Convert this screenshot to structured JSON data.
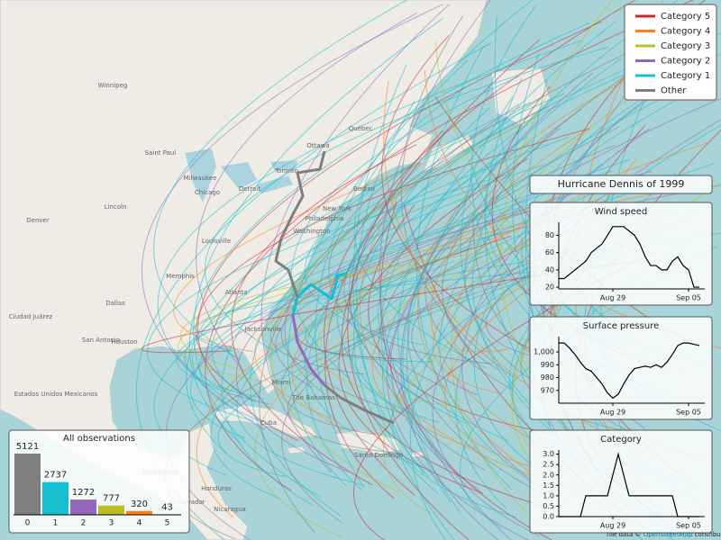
{
  "legend": {
    "items": [
      {
        "name": "Category 5",
        "color": "#d62728"
      },
      {
        "name": "Category 4",
        "color": "#ff7f0e"
      },
      {
        "name": "Category 3",
        "color": "#bcbd22"
      },
      {
        "name": "Category 2",
        "color": "#9467bd"
      },
      {
        "name": "Category 1",
        "color": "#17becf"
      },
      {
        "name": "Other",
        "color": "#7f7f7f"
      }
    ]
  },
  "map_labels": [
    "Winnipeg",
    "Ottawa",
    "Québec",
    "Toronto",
    "Boston",
    "New York",
    "Philadelphia",
    "Washington",
    "Milwaukee",
    "Chicago",
    "Detroit",
    "Saint Paul",
    "Lincoln",
    "Denver",
    "Louisville",
    "Memphis",
    "Atlanta",
    "Dallas",
    "Houston",
    "San Antonio",
    "Ciudad Juárez",
    "Estados Unidos Mexicanos",
    "Jacksonville",
    "Miami",
    "The Bahamas",
    "Cuba",
    "Guatemala",
    "Honduras",
    "El Salvador",
    "Nicaragua",
    "Santo Domingo"
  ],
  "panel": {
    "title": "Hurricane Dennis of 1999",
    "x": [
      24,
      24.5,
      25,
      25.5,
      26,
      26.5,
      27,
      27.5,
      28,
      28.5,
      29,
      29.5,
      30,
      30.5,
      31,
      31.5,
      32,
      32.5,
      33,
      33.5,
      34,
      34.5,
      35,
      35.5,
      36,
      36.5,
      37
    ],
    "xlim": [
      24,
      37.5
    ],
    "xticks": [
      {
        "value": 29,
        "label": "Aug 29"
      },
      {
        "value": 36,
        "label": "Sep 05"
      }
    ],
    "charts": [
      {
        "type": "line",
        "title": "Wind speed",
        "color": "#000000",
        "values": [
          30,
          30,
          35,
          40,
          45,
          50,
          60,
          65,
          70,
          80,
          90,
          90,
          90,
          85,
          80,
          70,
          55,
          45,
          45,
          40,
          40,
          50,
          55,
          45,
          40,
          20,
          20
        ],
        "ylim": [
          18,
          95
        ],
        "yticks": [
          20,
          40,
          60,
          80
        ]
      },
      {
        "type": "line",
        "title": "Surface pressure",
        "color": "#000000",
        "values": [
          1007,
          1007,
          1003,
          998,
          992,
          987,
          985,
          980,
          975,
          968,
          964,
          967,
          975,
          982,
          987,
          988,
          989,
          988,
          990,
          988,
          992,
          998,
          1005,
          1007,
          1007,
          1006,
          1005
        ],
        "ylim": [
          960,
          1012
        ],
        "yticks": [
          970,
          980,
          990,
          {
            "value": 1000,
            "label": "1,000"
          }
        ]
      },
      {
        "type": "line",
        "title": "Category",
        "color": "#000000",
        "values": [
          0,
          0,
          0,
          0,
          0,
          1,
          1,
          1,
          1,
          1,
          2,
          3,
          2,
          1,
          1,
          1,
          1,
          1,
          1,
          1,
          1,
          1,
          0,
          0,
          0,
          0,
          0
        ],
        "ylim": [
          0,
          3.2
        ],
        "yticks": [
          {
            "value": 0,
            "label": "0.0"
          },
          0.5,
          {
            "value": 1,
            "label": "1.0"
          },
          1.5,
          {
            "value": 2,
            "label": "2.0"
          },
          2.5,
          {
            "value": 3,
            "label": "3.0"
          }
        ]
      }
    ]
  },
  "histogram": {
    "type": "bar",
    "title": "All observations",
    "categories": [
      "0",
      "1",
      "2",
      "3",
      "4",
      "5"
    ],
    "values": [
      5121,
      2737,
      1272,
      777,
      320,
      43
    ],
    "colors": [
      "#7f7f7f",
      "#17becf",
      "#9467bd",
      "#bcbd22",
      "#ff7f0e",
      "#d62728"
    ]
  },
  "attribution": {
    "prefix": "Tile data ©",
    "link": "OpenStreetMap",
    "suffix": "contributors"
  }
}
